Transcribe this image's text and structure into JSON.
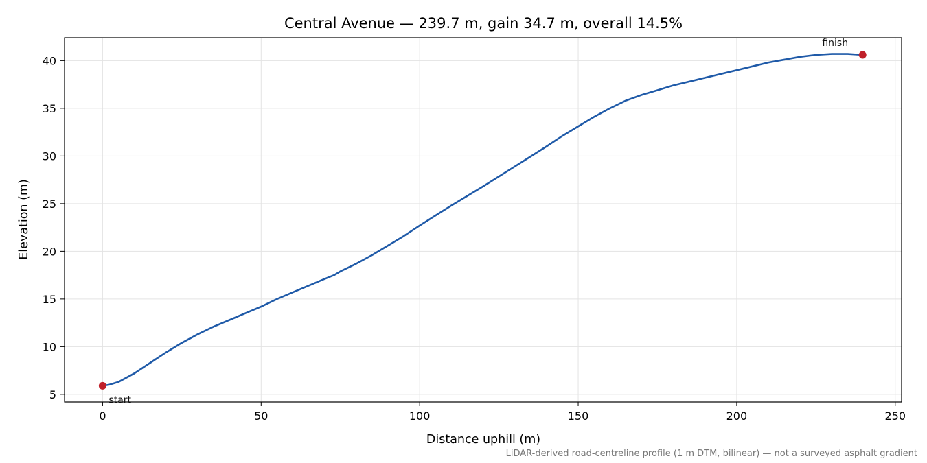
{
  "chart_data": {
    "type": "line",
    "title": "Central Avenue — 239.7 m, gain 34.7 m, overall 14.5%",
    "xlabel": "Distance uphill (m)",
    "ylabel": "Elevation (m)",
    "xlim": [
      -12,
      252
    ],
    "ylim": [
      4.2,
      42.4
    ],
    "x_ticks": [
      0,
      50,
      100,
      150,
      200,
      250
    ],
    "y_ticks": [
      5,
      10,
      15,
      20,
      25,
      30,
      35,
      40
    ],
    "grid": true,
    "footnote": "LiDAR-derived road-centreline profile (1 m DTM, bilinear) — not a surveyed asphalt gradient",
    "series": [
      {
        "color": "#1f5aa8",
        "x": [
          0,
          2,
          5,
          10,
          15,
          20,
          25,
          30,
          35,
          40,
          45,
          50,
          55,
          60,
          65,
          70,
          73,
          75,
          80,
          85,
          90,
          95,
          100,
          110,
          120,
          130,
          140,
          145,
          150,
          155,
          160,
          165,
          170,
          175,
          180,
          190,
          200,
          210,
          220,
          225,
          230,
          235,
          239.7
        ],
        "y": [
          5.9,
          6.0,
          6.3,
          7.2,
          8.3,
          9.4,
          10.4,
          11.3,
          12.1,
          12.8,
          13.5,
          14.2,
          15.0,
          15.7,
          16.4,
          17.1,
          17.5,
          17.9,
          18.7,
          19.6,
          20.6,
          21.6,
          22.7,
          24.8,
          26.8,
          28.9,
          31.0,
          32.1,
          33.1,
          34.1,
          35.0,
          35.8,
          36.4,
          36.9,
          37.4,
          38.2,
          39.0,
          39.8,
          40.4,
          40.6,
          40.7,
          40.7,
          40.6
        ]
      }
    ],
    "markers": [
      {
        "x": 0,
        "y": 5.9,
        "label": "start",
        "color": "#c0202a"
      },
      {
        "x": 239.7,
        "y": 40.6,
        "label": "finish",
        "color": "#c0202a"
      }
    ]
  }
}
